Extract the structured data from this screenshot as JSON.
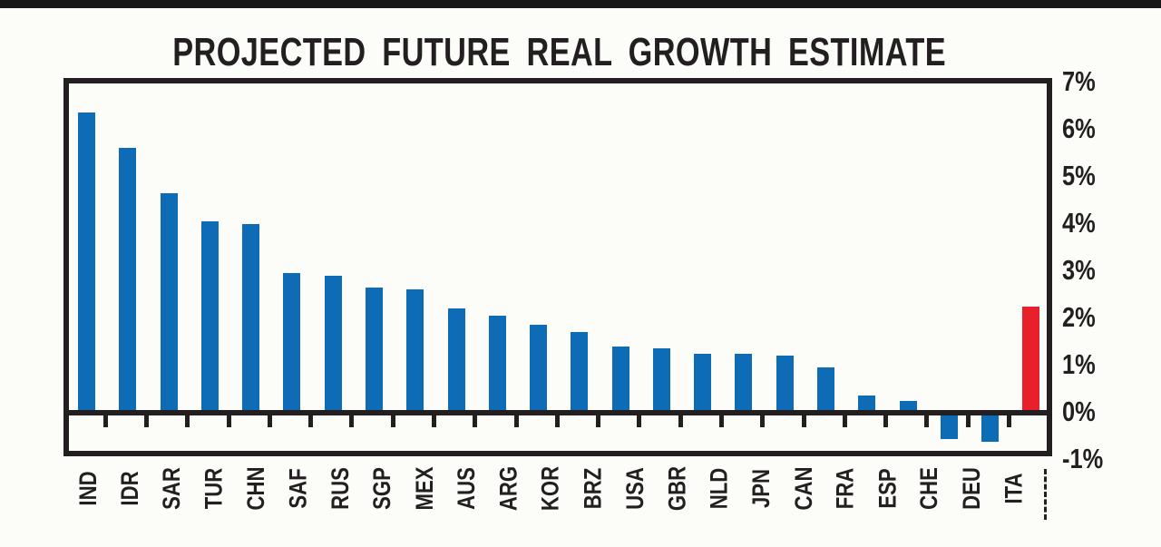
{
  "chart_data": {
    "type": "bar",
    "title": "PROJECTED FUTURE REAL GROWTH ESTIMATE",
    "categories": [
      "IND",
      "IDR",
      "SAR",
      "TUR",
      "CHN",
      "SAF",
      "RUS",
      "SGP",
      "MEX",
      "AUS",
      "ARG",
      "KOR",
      "BRZ",
      "USA",
      "GBR",
      "NLD",
      "JPN",
      "CAN",
      "FRA",
      "ESP",
      "CHE",
      "DEU",
      "ITA",
      ""
    ],
    "values": [
      6.3,
      5.55,
      4.6,
      4.0,
      3.95,
      2.9,
      2.85,
      2.6,
      2.55,
      2.15,
      2.0,
      1.8,
      1.65,
      1.35,
      1.3,
      1.2,
      1.2,
      1.15,
      0.9,
      0.3,
      0.2,
      -0.5,
      -0.55,
      2.2
    ],
    "unit": "%",
    "highlight_index": 23,
    "highlight_label_marker": "dashed-vertical-line",
    "y_tick_labels": [
      "7%",
      "6%",
      "5%",
      "4%",
      "3%",
      "2%",
      "1%",
      "0%",
      "-1%"
    ],
    "ylim": [
      -1,
      7
    ],
    "grid": false,
    "legend": false,
    "colors": {
      "bar_blue": "#0d6cb5",
      "bar_highlight_red": "#e8202c",
      "axis_black": "#231f20",
      "background": "#fcfcf9"
    }
  }
}
